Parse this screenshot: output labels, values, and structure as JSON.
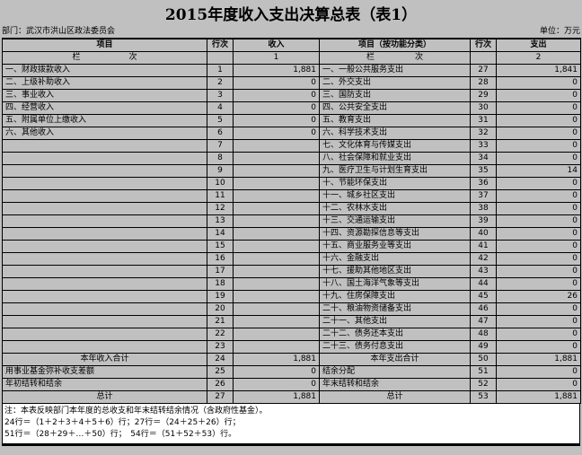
{
  "title": "2015年度收入支出决算总表（表1）",
  "meta": {
    "department": "部门：武汉市洪山区政法委员会",
    "unit": "单位：万元"
  },
  "table": {
    "headers": {
      "item_left": "项目",
      "rowno_left": "行次",
      "income": "收入",
      "item_right": "项目（按功能分类）",
      "rowno_right": "行次",
      "expenditure": "支出",
      "band_left": "栏　　　　　　次",
      "col_index_income": "1",
      "band_right": "栏　　　　　次",
      "col_index_expenditure": "2"
    },
    "rows": [
      {
        "li": "一、财政拨款收入",
        "ln": "1",
        "inc": "1,881",
        "lc": false,
        "ri": "一、一般公共服务支出",
        "rn": "27",
        "exp": "1,841",
        "rc": false
      },
      {
        "li": "二、上级补助收入",
        "ln": "2",
        "inc": "0",
        "lc": false,
        "ri": "二、外交支出",
        "rn": "28",
        "exp": "0",
        "rc": false
      },
      {
        "li": "三、事业收入",
        "ln": "3",
        "inc": "0",
        "lc": false,
        "ri": "三、国防支出",
        "rn": "29",
        "exp": "0",
        "rc": false
      },
      {
        "li": "四、经营收入",
        "ln": "4",
        "inc": "0",
        "lc": false,
        "ri": "四、公共安全支出",
        "rn": "30",
        "exp": "0",
        "rc": false
      },
      {
        "li": "五、附属单位上缴收入",
        "ln": "5",
        "inc": "0",
        "lc": false,
        "ri": "五、教育支出",
        "rn": "31",
        "exp": "0",
        "rc": false
      },
      {
        "li": "六、其他收入",
        "ln": "6",
        "inc": "0",
        "lc": false,
        "ri": "六、科学技术支出",
        "rn": "32",
        "exp": "0",
        "rc": false
      },
      {
        "li": "",
        "ln": "7",
        "inc": "",
        "lc": false,
        "ri": "七、文化体育与传媒支出",
        "rn": "33",
        "exp": "0",
        "rc": false
      },
      {
        "li": "",
        "ln": "8",
        "inc": "",
        "lc": false,
        "ri": "八、社会保障和就业支出",
        "rn": "34",
        "exp": "0",
        "rc": false
      },
      {
        "li": "",
        "ln": "9",
        "inc": "",
        "lc": false,
        "ri": "九、医疗卫生与计划生育支出",
        "rn": "35",
        "exp": "14",
        "rc": false
      },
      {
        "li": "",
        "ln": "10",
        "inc": "",
        "lc": false,
        "ri": "十、节能环保支出",
        "rn": "36",
        "exp": "0",
        "rc": false
      },
      {
        "li": "",
        "ln": "11",
        "inc": "",
        "lc": false,
        "ri": "十一、城乡社区支出",
        "rn": "37",
        "exp": "0",
        "rc": false
      },
      {
        "li": "",
        "ln": "12",
        "inc": "",
        "lc": false,
        "ri": "十二、农林水支出",
        "rn": "38",
        "exp": "0",
        "rc": false
      },
      {
        "li": "",
        "ln": "13",
        "inc": "",
        "lc": false,
        "ri": "十三、交通运输支出",
        "rn": "39",
        "exp": "0",
        "rc": false
      },
      {
        "li": "",
        "ln": "14",
        "inc": "",
        "lc": false,
        "ri": "十四、资源勘探信息等支出",
        "rn": "40",
        "exp": "0",
        "rc": false
      },
      {
        "li": "",
        "ln": "15",
        "inc": "",
        "lc": false,
        "ri": "十五、商业服务业等支出",
        "rn": "41",
        "exp": "0",
        "rc": false
      },
      {
        "li": "",
        "ln": "16",
        "inc": "",
        "lc": false,
        "ri": "十六、金融支出",
        "rn": "42",
        "exp": "0",
        "rc": false
      },
      {
        "li": "",
        "ln": "17",
        "inc": "",
        "lc": false,
        "ri": "十七、援助其他地区支出",
        "rn": "43",
        "exp": "0",
        "rc": false
      },
      {
        "li": "",
        "ln": "18",
        "inc": "",
        "lc": false,
        "ri": "十八、国土海洋气象等支出",
        "rn": "44",
        "exp": "0",
        "rc": false
      },
      {
        "li": "",
        "ln": "19",
        "inc": "",
        "lc": false,
        "ri": "十九、住房保障支出",
        "rn": "45",
        "exp": "26",
        "rc": false
      },
      {
        "li": "",
        "ln": "20",
        "inc": "",
        "lc": false,
        "ri": "二十、粮油物资储备支出",
        "rn": "46",
        "exp": "0",
        "rc": false
      },
      {
        "li": "",
        "ln": "21",
        "inc": "",
        "lc": false,
        "ri": "二十一、其他支出",
        "rn": "47",
        "exp": "0",
        "rc": false
      },
      {
        "li": "",
        "ln": "22",
        "inc": "",
        "lc": false,
        "ri": "二十二、债务还本支出",
        "rn": "48",
        "exp": "0",
        "rc": false
      },
      {
        "li": "",
        "ln": "23",
        "inc": "",
        "lc": false,
        "ri": "二十三、债务付息支出",
        "rn": "49",
        "exp": "0",
        "rc": false
      },
      {
        "li": "本年收入合计",
        "ln": "24",
        "inc": "1,881",
        "lc": true,
        "ri": "本年支出合计",
        "rn": "50",
        "exp": "1,881",
        "rc": true
      },
      {
        "li": "用事业基金弥补收支差额",
        "ln": "25",
        "inc": "0",
        "lc": false,
        "ri": "结余分配",
        "rn": "51",
        "exp": "0",
        "rc": false
      },
      {
        "li": "年初结转和结余",
        "ln": "26",
        "inc": "0",
        "lc": false,
        "ri": "年末结转和结余",
        "rn": "52",
        "exp": "0",
        "rc": false
      },
      {
        "li": "总计",
        "ln": "27",
        "inc": "1,881",
        "lc": true,
        "ri": "总计",
        "rn": "53",
        "exp": "1,881",
        "rc": true
      }
    ]
  },
  "notes": {
    "line1": "注：本表反映部门本年度的总收支和年末结转结余情况（含政府性基金）。",
    "line2": "24行＝（1＋2＋3＋4＋5＋6）行；27行＝（24＋25＋26）行；",
    "line3": "51行＝（28＋29＋…＋50）行；　54行＝（51＋52＋53）行。"
  }
}
